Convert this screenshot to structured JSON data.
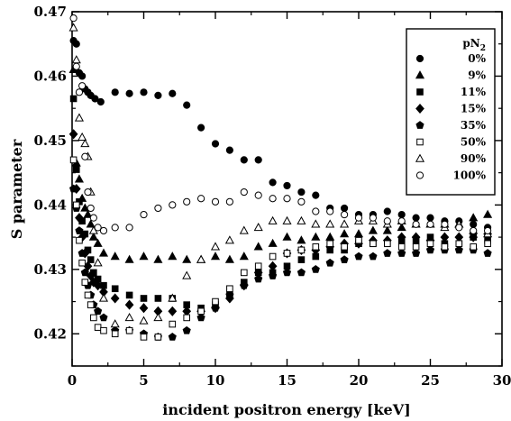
{
  "chart_data": {
    "type": "scatter",
    "xlabel": "incident positron energy [keV]",
    "ylabel": "S parameter",
    "xlim": [
      0,
      30
    ],
    "ylim": [
      0.415,
      0.47
    ],
    "x_ticks": [
      0,
      5,
      10,
      15,
      20,
      25,
      30
    ],
    "x_tick_labels": [
      "0",
      "5",
      "10",
      "15",
      "20",
      "25",
      "30"
    ],
    "y_ticks": [
      0.42,
      0.43,
      0.44,
      0.45,
      0.46,
      0.47
    ],
    "y_tick_labels": [
      "0.42",
      "0.43",
      "0.44",
      "0.45",
      "0.46",
      "0.47"
    ],
    "grid": false,
    "legend_position": "top-right",
    "legend_title_main": "pN",
    "legend_title_sub": "2",
    "series": [
      {
        "name": "0%",
        "marker": "circle-filled",
        "x": [
          0.1,
          0.3,
          0.5,
          0.7,
          0.9,
          1.1,
          1.3,
          1.6,
          2.0,
          3.0,
          4.0,
          5.0,
          6.0,
          7.0,
          8.0,
          9.0,
          10.0,
          11.0,
          12.0,
          13.0,
          14.0,
          15.0,
          16.0,
          17.0,
          18.0,
          19.0,
          20.0,
          21.0,
          22.0,
          23.0,
          24.0,
          25.0,
          26.0,
          27.0,
          28.0,
          29.0
        ],
        "y": [
          0.4655,
          0.465,
          0.4605,
          0.46,
          0.458,
          0.4575,
          0.457,
          0.4565,
          0.456,
          0.4575,
          0.4573,
          0.4575,
          0.457,
          0.4573,
          0.4555,
          0.452,
          0.4495,
          0.4485,
          0.447,
          0.447,
          0.4435,
          0.443,
          0.442,
          0.4415,
          0.4395,
          0.4395,
          0.4385,
          0.4385,
          0.439,
          0.4385,
          0.438,
          0.438,
          0.4375,
          0.4375,
          0.437,
          0.4365
        ]
      },
      {
        "name": "9%",
        "marker": "triangle-filled",
        "x": [
          0.1,
          0.3,
          0.5,
          0.7,
          0.9,
          1.1,
          1.3,
          1.5,
          1.8,
          2.2,
          3.0,
          4.0,
          5.0,
          6.0,
          7.0,
          8.0,
          9.0,
          10.0,
          11.0,
          12.0,
          13.0,
          14.0,
          15.0,
          16.0,
          17.0,
          18.0,
          19.0,
          20.0,
          21.0,
          22.0,
          23.0,
          24.0,
          25.0,
          26.0,
          27.0,
          28.0,
          29.0
        ],
        "y": [
          0.461,
          0.4465,
          0.444,
          0.441,
          0.4395,
          0.4385,
          0.437,
          0.435,
          0.434,
          0.4325,
          0.432,
          0.4315,
          0.432,
          0.4315,
          0.432,
          0.4315,
          0.4315,
          0.432,
          0.4315,
          0.432,
          0.4335,
          0.434,
          0.435,
          0.4345,
          0.435,
          0.435,
          0.4355,
          0.4355,
          0.436,
          0.436,
          0.4365,
          0.437,
          0.437,
          0.437,
          0.437,
          0.438,
          0.4385
        ]
      },
      {
        "name": "11%",
        "marker": "square-filled",
        "x": [
          0.1,
          0.3,
          0.5,
          0.7,
          0.9,
          1.1,
          1.3,
          1.5,
          1.8,
          2.2,
          3.0,
          4.0,
          5.0,
          6.0,
          7.0,
          8.0,
          9.0,
          10.0,
          11.0,
          12.0,
          13.0,
          14.0,
          15.0,
          16.0,
          17.0,
          18.0,
          19.0,
          20.0,
          21.0,
          22.0,
          23.0,
          24.0,
          25.0,
          26.0,
          27.0,
          28.0,
          29.0
        ],
        "y": [
          0.4565,
          0.4455,
          0.4405,
          0.4375,
          0.4355,
          0.433,
          0.4315,
          0.4295,
          0.4285,
          0.4275,
          0.427,
          0.426,
          0.4255,
          0.4255,
          0.4255,
          0.4245,
          0.424,
          0.4245,
          0.426,
          0.428,
          0.4295,
          0.4295,
          0.4305,
          0.4315,
          0.432,
          0.433,
          0.433,
          0.434,
          0.434,
          0.434,
          0.4345,
          0.4345,
          0.435,
          0.434,
          0.434,
          0.435,
          0.4345
        ]
      },
      {
        "name": "15%",
        "marker": "diamond-filled",
        "x": [
          0.1,
          0.3,
          0.5,
          0.7,
          0.9,
          1.1,
          1.3,
          1.5,
          1.8,
          2.2,
          3.0,
          4.0,
          5.0,
          6.0,
          7.0,
          8.0,
          9.0,
          10.0,
          11.0,
          12.0,
          13.0,
          14.0,
          15.0,
          16.0,
          17.0,
          18.0,
          19.0,
          20.0,
          21.0,
          22.0,
          23.0,
          24.0,
          25.0,
          26.0,
          27.0,
          28.0,
          29.0
        ],
        "y": [
          0.451,
          0.4425,
          0.438,
          0.435,
          0.4325,
          0.4305,
          0.429,
          0.428,
          0.4275,
          0.4265,
          0.4255,
          0.4245,
          0.424,
          0.4235,
          0.4235,
          0.4235,
          0.4235,
          0.424,
          0.4255,
          0.4275,
          0.4295,
          0.4305,
          0.4325,
          0.433,
          0.433,
          0.4335,
          0.434,
          0.434,
          0.4345,
          0.4345,
          0.435,
          0.435,
          0.4345,
          0.435,
          0.435,
          0.435,
          0.4355
        ]
      },
      {
        "name": "35%",
        "marker": "pentagon-filled",
        "x": [
          0.1,
          0.3,
          0.5,
          0.7,
          0.9,
          1.1,
          1.3,
          1.5,
          1.8,
          2.2,
          3.0,
          4.0,
          5.0,
          6.0,
          7.0,
          8.0,
          9.0,
          10.0,
          11.0,
          12.0,
          13.0,
          14.0,
          15.0,
          16.0,
          17.0,
          18.0,
          19.0,
          20.0,
          21.0,
          22.0,
          23.0,
          24.0,
          25.0,
          26.0,
          27.0,
          28.0,
          29.0
        ],
        "y": [
          0.4425,
          0.4395,
          0.436,
          0.4325,
          0.4295,
          0.4275,
          0.426,
          0.4245,
          0.4235,
          0.4225,
          0.4205,
          0.4205,
          0.42,
          0.4195,
          0.4195,
          0.4205,
          0.4225,
          0.424,
          0.426,
          0.4275,
          0.4285,
          0.429,
          0.4295,
          0.4295,
          0.43,
          0.431,
          0.4315,
          0.432,
          0.432,
          0.4325,
          0.4325,
          0.4325,
          0.433,
          0.433,
          0.433,
          0.433,
          0.4325
        ]
      },
      {
        "name": "50%",
        "marker": "square-open",
        "x": [
          0.1,
          0.3,
          0.5,
          0.7,
          0.9,
          1.1,
          1.3,
          1.5,
          1.8,
          2.2,
          3.0,
          4.0,
          5.0,
          6.0,
          7.0,
          8.0,
          9.0,
          10.0,
          11.0,
          12.0,
          13.0,
          14.0,
          15.0,
          16.0,
          17.0,
          18.0,
          19.0,
          20.0,
          21.0,
          22.0,
          23.0,
          24.0,
          25.0,
          26.0,
          27.0,
          28.0,
          29.0
        ],
        "y": [
          0.447,
          0.44,
          0.4345,
          0.431,
          0.428,
          0.426,
          0.4245,
          0.4225,
          0.421,
          0.4205,
          0.42,
          0.4205,
          0.4195,
          0.4195,
          0.4215,
          0.4225,
          0.4235,
          0.425,
          0.427,
          0.4295,
          0.4305,
          0.432,
          0.4325,
          0.433,
          0.4335,
          0.434,
          0.4335,
          0.4345,
          0.434,
          0.434,
          0.4335,
          0.4335,
          0.434,
          0.4335,
          0.434,
          0.4335,
          0.434
        ]
      },
      {
        "name": "90%",
        "marker": "triangle-open",
        "x": [
          0.1,
          0.3,
          0.5,
          0.7,
          0.9,
          1.1,
          1.3,
          1.5,
          1.8,
          2.2,
          3.0,
          4.0,
          5.0,
          6.0,
          7.0,
          8.0,
          9.0,
          10.0,
          11.0,
          12.0,
          13.0,
          14.0,
          15.0,
          16.0,
          17.0,
          18.0,
          19.0,
          20.0,
          21.0,
          22.0,
          23.0,
          24.0,
          25.0,
          26.0,
          27.0,
          28.0,
          29.0
        ],
        "y": [
          0.4675,
          0.4625,
          0.4535,
          0.4505,
          0.4495,
          0.4475,
          0.442,
          0.436,
          0.431,
          0.4255,
          0.4215,
          0.4225,
          0.422,
          0.4225,
          0.4255,
          0.429,
          0.4315,
          0.4335,
          0.4345,
          0.436,
          0.4365,
          0.4375,
          0.4375,
          0.4375,
          0.437,
          0.437,
          0.437,
          0.4375,
          0.4375,
          0.437,
          0.4375,
          0.437,
          0.437,
          0.4365,
          0.437,
          0.436,
          0.4355
        ]
      },
      {
        "name": "100%",
        "marker": "circle-open",
        "x": [
          0.1,
          0.3,
          0.5,
          0.7,
          0.9,
          1.1,
          1.3,
          1.5,
          1.8,
          2.2,
          3.0,
          4.0,
          5.0,
          6.0,
          7.0,
          8.0,
          9.0,
          10.0,
          11.0,
          12.0,
          13.0,
          14.0,
          15.0,
          16.0,
          17.0,
          18.0,
          19.0,
          20.0,
          21.0,
          22.0,
          23.0,
          24.0,
          25.0,
          26.0,
          27.0,
          28.0,
          29.0
        ],
        "y": [
          0.469,
          0.4615,
          0.4575,
          0.4585,
          0.4475,
          0.442,
          0.4395,
          0.438,
          0.4365,
          0.436,
          0.4365,
          0.4365,
          0.4385,
          0.4395,
          0.44,
          0.4405,
          0.441,
          0.4405,
          0.4405,
          0.442,
          0.4415,
          0.441,
          0.441,
          0.4405,
          0.439,
          0.439,
          0.4385,
          0.438,
          0.438,
          0.4375,
          0.4375,
          0.437,
          0.437,
          0.437,
          0.4365,
          0.436,
          0.436
        ]
      }
    ]
  }
}
